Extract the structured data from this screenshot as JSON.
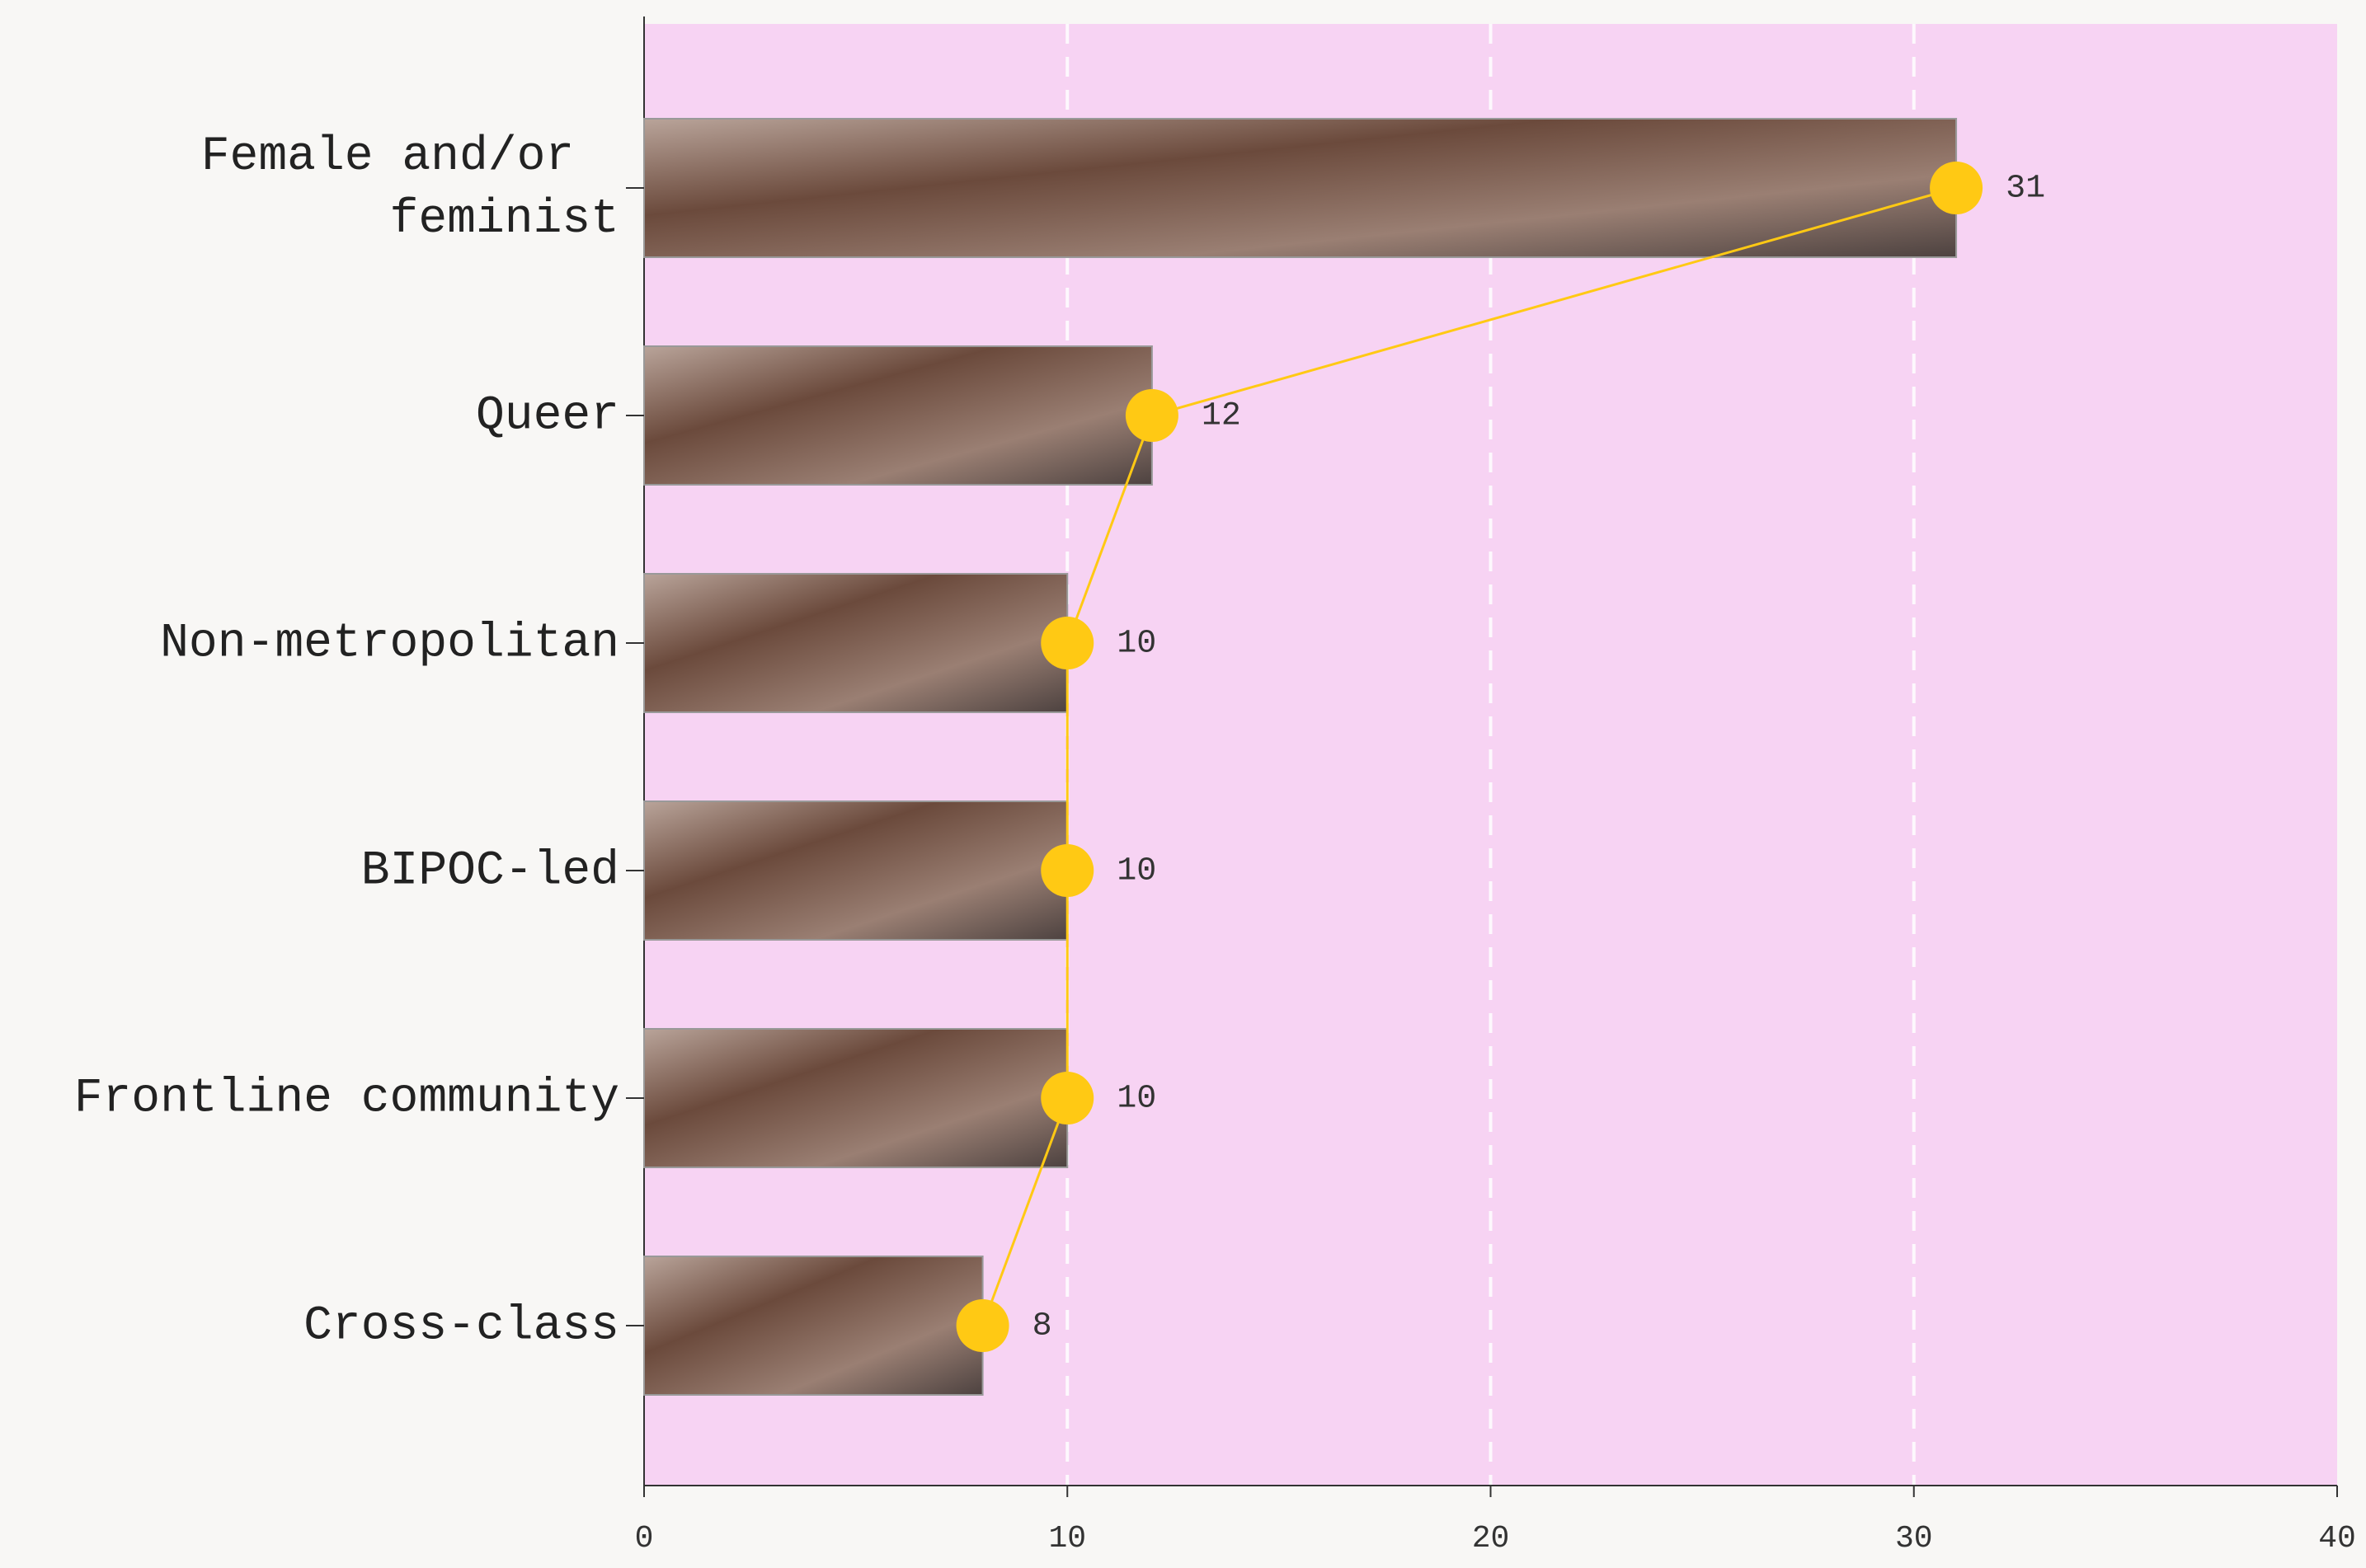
{
  "chart_data": {
    "type": "bar",
    "categories": [
      "Female and/or feminist",
      "Queer",
      "Non-metropolitan",
      "BIPOC-led",
      "Frontline community",
      "Cross-class"
    ],
    "values": [
      31,
      12,
      10,
      10,
      10,
      8
    ],
    "color": "#ffc914",
    "xlim": [
      0,
      40
    ],
    "xticks": [
      0,
      10,
      20,
      30,
      40
    ],
    "grid": true
  }
}
